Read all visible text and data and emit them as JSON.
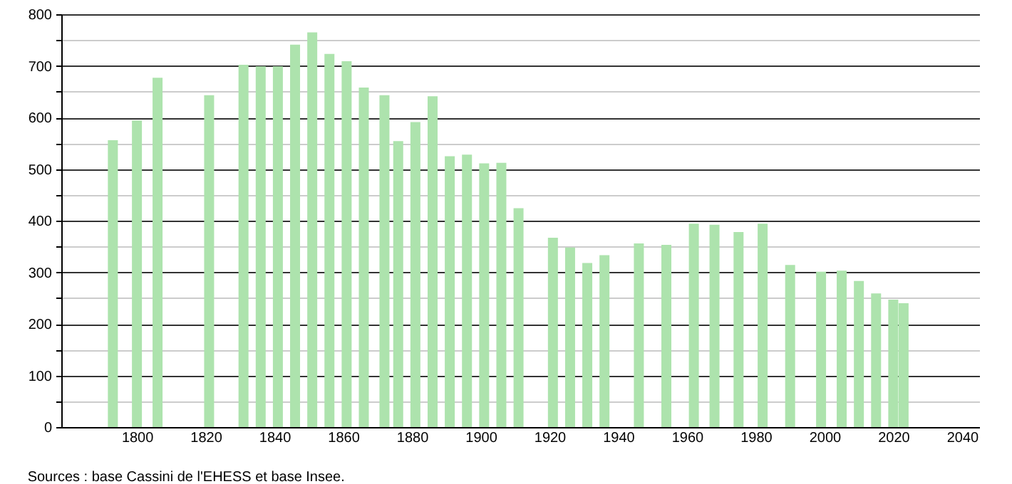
{
  "chart_data": {
    "type": "bar",
    "color": "#ade3ad",
    "x": [
      1793,
      1800,
      1806,
      1821,
      1831,
      1836,
      1841,
      1846,
      1851,
      1856,
      1861,
      1866,
      1872,
      1876,
      1881,
      1886,
      1891,
      1896,
      1901,
      1906,
      1911,
      1921,
      1926,
      1931,
      1936,
      1946,
      1954,
      1962,
      1968,
      1975,
      1982,
      1990,
      1999,
      2005,
      2010,
      2015,
      2020,
      2023
    ],
    "values": [
      556,
      594,
      677,
      643,
      702,
      699,
      699,
      741,
      765,
      723,
      709,
      658,
      643,
      554,
      591,
      641,
      525,
      528,
      511,
      512,
      424,
      367,
      348,
      318,
      333,
      356,
      353,
      394,
      392,
      378,
      394,
      314,
      301,
      303,
      283,
      259,
      247,
      240
    ],
    "xlim": [
      1778,
      2045
    ],
    "xticks": [
      1800,
      1820,
      1840,
      1860,
      1880,
      1900,
      1920,
      1940,
      1960,
      1980,
      2000,
      2020,
      2040
    ],
    "ylim": [
      0,
      800
    ],
    "yticks": [
      0,
      {
        "value": 50,
        "label": null
      },
      100,
      {
        "value": 150,
        "label": null
      },
      200,
      {
        "value": 250,
        "label": null
      },
      300,
      {
        "value": 350,
        "label": null
      },
      400,
      {
        "value": 450,
        "label": null
      },
      500,
      {
        "value": 550,
        "label": null
      },
      600,
      {
        "value": 650,
        "label": null
      },
      700,
      {
        "value": 750,
        "label": null
      },
      800
    ],
    "grid": "y",
    "annotations": [
      "Sources : base Cassini de l'EHESS et base Insee."
    ]
  }
}
